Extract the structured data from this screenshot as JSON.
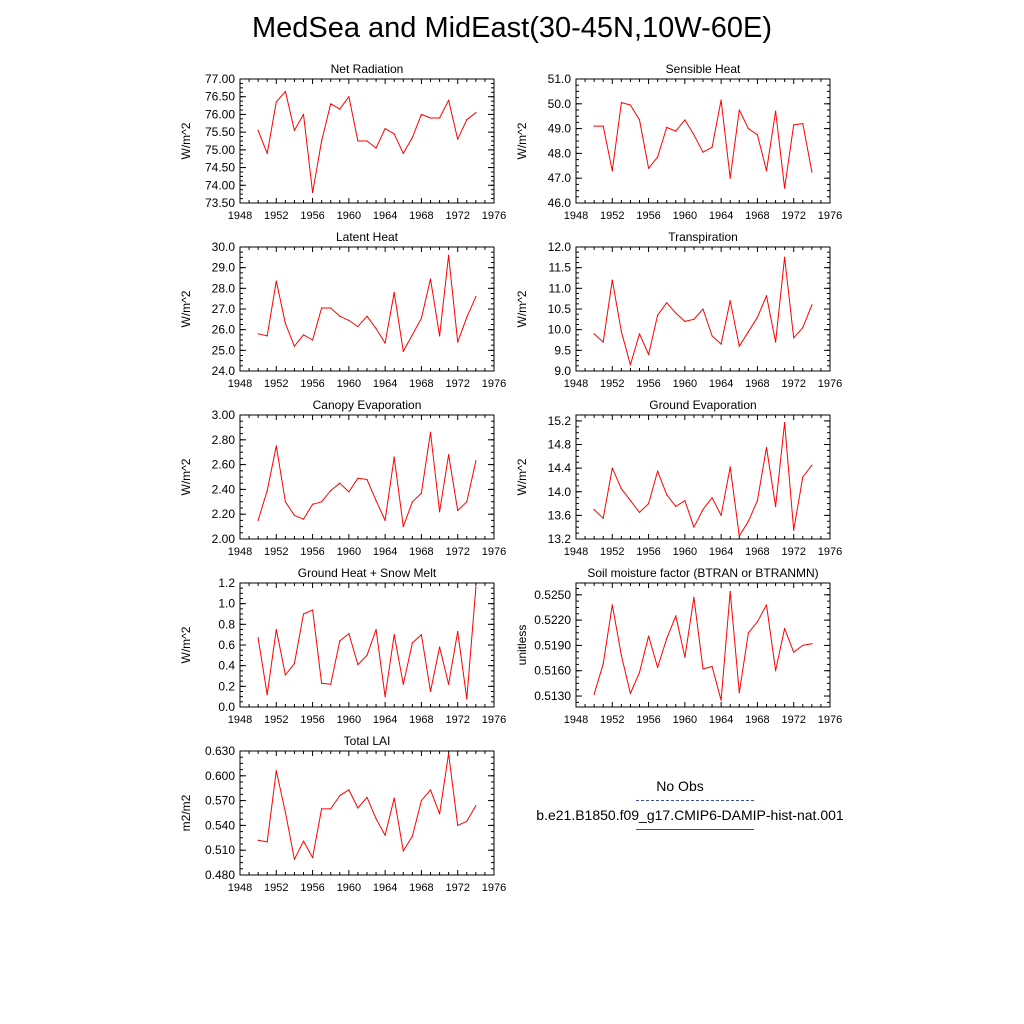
{
  "title": "MedSea and MidEast(30-45N,10W-60E)",
  "series_color": "#ff0000",
  "obs_color": "#3a4fa0",
  "legend": {
    "obs_label": "No Obs",
    "model_label": "b.e21.B1850.f09_g17.CMIP6-DAMIP-hist-nat.001"
  },
  "chart_data": [
    {
      "type": "line",
      "title": "Net Radiation",
      "ylabel": "W/m^2",
      "xlim": [
        1948,
        1976
      ],
      "xticks": [
        "1948",
        "1952",
        "1956",
        "1960",
        "1964",
        "1968",
        "1972",
        "1976"
      ],
      "ylim": [
        73.5,
        77.0
      ],
      "yticks": [
        "73.50",
        "74.00",
        "74.50",
        "75.00",
        "75.50",
        "76.00",
        "76.50",
        "77.00"
      ],
      "x": [
        1950,
        1951,
        1952,
        1953,
        1954,
        1955,
        1956,
        1957,
        1958,
        1959,
        1960,
        1961,
        1962,
        1963,
        1964,
        1965,
        1966,
        1967,
        1968,
        1969,
        1970,
        1971,
        1972,
        1973,
        1974
      ],
      "series": [
        {
          "values": [
            75.55,
            74.9,
            76.35,
            76.65,
            75.55,
            76.0,
            73.8,
            75.25,
            76.3,
            76.15,
            76.5,
            75.25,
            75.25,
            75.05,
            75.6,
            75.45,
            74.9,
            75.35,
            76.0,
            75.9,
            75.9,
            76.4,
            75.3,
            75.85,
            76.05
          ]
        }
      ]
    },
    {
      "type": "line",
      "title": "Sensible Heat",
      "ylabel": "W/m^2",
      "xlim": [
        1948,
        1976
      ],
      "xticks": [
        "1948",
        "1952",
        "1956",
        "1960",
        "1964",
        "1968",
        "1972",
        "1976"
      ],
      "ylim": [
        46.0,
        51.0
      ],
      "yticks": [
        "46.0",
        "47.0",
        "48.0",
        "49.0",
        "50.0",
        "51.0"
      ],
      "x": [
        1950,
        1951,
        1952,
        1953,
        1954,
        1955,
        1956,
        1957,
        1958,
        1959,
        1960,
        1961,
        1962,
        1963,
        1964,
        1965,
        1966,
        1967,
        1968,
        1969,
        1970,
        1971,
        1972,
        1973,
        1974
      ],
      "series": [
        {
          "values": [
            49.1,
            49.1,
            47.3,
            50.05,
            49.95,
            49.35,
            47.4,
            47.85,
            49.05,
            48.9,
            49.35,
            48.75,
            48.05,
            48.25,
            50.15,
            47.0,
            49.75,
            49.0,
            48.75,
            47.3,
            49.7,
            46.6,
            49.15,
            49.2,
            47.25
          ]
        }
      ]
    },
    {
      "type": "line",
      "title": "Latent Heat",
      "ylabel": "W/m^2",
      "xlim": [
        1948,
        1976
      ],
      "xticks": [
        "1948",
        "1952",
        "1956",
        "1960",
        "1964",
        "1968",
        "1972",
        "1976"
      ],
      "ylim": [
        24.0,
        30.0
      ],
      "yticks": [
        "24.0",
        "25.0",
        "26.0",
        "27.0",
        "28.0",
        "29.0",
        "30.0"
      ],
      "x": [
        1950,
        1951,
        1952,
        1953,
        1954,
        1955,
        1956,
        1957,
        1958,
        1959,
        1960,
        1961,
        1962,
        1963,
        1964,
        1965,
        1966,
        1967,
        1968,
        1969,
        1970,
        1971,
        1972,
        1973,
        1974
      ],
      "series": [
        {
          "values": [
            25.8,
            25.7,
            28.35,
            26.3,
            25.2,
            25.75,
            25.5,
            27.05,
            27.05,
            26.65,
            26.45,
            26.15,
            26.65,
            26.05,
            25.35,
            27.8,
            24.95,
            25.75,
            26.55,
            28.45,
            25.7,
            29.6,
            25.4,
            26.6,
            27.6
          ]
        }
      ]
    },
    {
      "type": "line",
      "title": "Transpiration",
      "ylabel": "W/m^2",
      "xlim": [
        1948,
        1976
      ],
      "xticks": [
        "1948",
        "1952",
        "1956",
        "1960",
        "1964",
        "1968",
        "1972",
        "1976"
      ],
      "ylim": [
        9.0,
        12.0
      ],
      "yticks": [
        "9.0",
        "9.5",
        "10.0",
        "10.5",
        "11.0",
        "11.5",
        "12.0"
      ],
      "x": [
        1950,
        1951,
        1952,
        1953,
        1954,
        1955,
        1956,
        1957,
        1958,
        1959,
        1960,
        1961,
        1962,
        1963,
        1964,
        1965,
        1966,
        1967,
        1968,
        1969,
        1970,
        1971,
        1972,
        1973,
        1974
      ],
      "series": [
        {
          "values": [
            9.9,
            9.7,
            11.2,
            9.95,
            9.15,
            9.9,
            9.4,
            10.35,
            10.65,
            10.4,
            10.2,
            10.25,
            10.5,
            9.85,
            9.65,
            10.7,
            9.6,
            9.95,
            10.3,
            10.82,
            9.7,
            11.75,
            9.8,
            10.05,
            10.6
          ]
        }
      ]
    },
    {
      "type": "line",
      "title": "Canopy Evaporation",
      "ylabel": "W/m^2",
      "xlim": [
        1948,
        1976
      ],
      "xticks": [
        "1948",
        "1952",
        "1956",
        "1960",
        "1964",
        "1968",
        "1972",
        "1976"
      ],
      "ylim": [
        2.0,
        3.0
      ],
      "yticks": [
        "2.00",
        "2.20",
        "2.40",
        "2.60",
        "2.80",
        "3.00"
      ],
      "x": [
        1950,
        1951,
        1952,
        1953,
        1954,
        1955,
        1956,
        1957,
        1958,
        1959,
        1960,
        1961,
        1962,
        1963,
        1964,
        1965,
        1966,
        1967,
        1968,
        1969,
        1970,
        1971,
        1972,
        1973,
        1974
      ],
      "series": [
        {
          "values": [
            2.15,
            2.39,
            2.75,
            2.3,
            2.19,
            2.16,
            2.28,
            2.3,
            2.39,
            2.45,
            2.38,
            2.49,
            2.48,
            2.31,
            2.15,
            2.66,
            2.1,
            2.3,
            2.37,
            2.86,
            2.22,
            2.68,
            2.23,
            2.3,
            2.63
          ]
        }
      ]
    },
    {
      "type": "line",
      "title": "Ground Evaporation",
      "ylabel": "W/m^2",
      "xlim": [
        1948,
        1976
      ],
      "xticks": [
        "1948",
        "1952",
        "1956",
        "1960",
        "1964",
        "1968",
        "1972",
        "1976"
      ],
      "ylim": [
        13.2,
        15.3
      ],
      "yticks": [
        "13.2",
        "13.6",
        "14.0",
        "14.4",
        "14.8",
        "15.2"
      ],
      "x": [
        1950,
        1951,
        1952,
        1953,
        1954,
        1955,
        1956,
        1957,
        1958,
        1959,
        1960,
        1961,
        1962,
        1963,
        1964,
        1965,
        1966,
        1967,
        1968,
        1969,
        1970,
        1971,
        1972,
        1973,
        1974
      ],
      "series": [
        {
          "values": [
            13.7,
            13.55,
            14.4,
            14.05,
            13.85,
            13.65,
            13.8,
            14.35,
            13.95,
            13.75,
            13.85,
            13.4,
            13.7,
            13.9,
            13.6,
            14.42,
            13.25,
            13.5,
            13.85,
            14.75,
            13.75,
            15.17,
            13.35,
            14.25,
            14.45
          ]
        }
      ]
    },
    {
      "type": "line",
      "title": "Ground Heat + Snow Melt",
      "ylabel": "W/m^2",
      "xlim": [
        1948,
        1976
      ],
      "xticks": [
        "1948",
        "1952",
        "1956",
        "1960",
        "1964",
        "1968",
        "1972",
        "1976"
      ],
      "ylim": [
        0.0,
        1.2
      ],
      "yticks": [
        "0.0",
        "0.2",
        "0.4",
        "0.6",
        "0.8",
        "1.0",
        "1.2"
      ],
      "x": [
        1950,
        1951,
        1952,
        1953,
        1954,
        1955,
        1956,
        1957,
        1958,
        1959,
        1960,
        1961,
        1962,
        1963,
        1964,
        1965,
        1966,
        1967,
        1968,
        1969,
        1970,
        1971,
        1972,
        1973,
        1974
      ],
      "series": [
        {
          "values": [
            0.67,
            0.12,
            0.75,
            0.31,
            0.42,
            0.9,
            0.94,
            0.23,
            0.22,
            0.64,
            0.71,
            0.41,
            0.5,
            0.75,
            0.1,
            0.7,
            0.22,
            0.62,
            0.7,
            0.15,
            0.58,
            0.22,
            0.73,
            0.08,
            1.16
          ]
        }
      ]
    },
    {
      "type": "line",
      "title": "Soil moisture factor (BTRAN or BTRANMN)",
      "ylabel": "unitless",
      "xlim": [
        1948,
        1976
      ],
      "xticks": [
        "1948",
        "1952",
        "1956",
        "1960",
        "1964",
        "1968",
        "1972",
        "1976"
      ],
      "ylim": [
        0.5117,
        0.5264
      ],
      "yticks": [
        "0.5130",
        "0.5160",
        "0.5190",
        "0.5220",
        "0.5250"
      ],
      "x": [
        1950,
        1951,
        1952,
        1953,
        1954,
        1955,
        1956,
        1957,
        1958,
        1959,
        1960,
        1961,
        1962,
        1963,
        1964,
        1965,
        1966,
        1967,
        1968,
        1969,
        1970,
        1971,
        1972,
        1973,
        1974
      ],
      "series": [
        {
          "values": [
            0.5132,
            0.5168,
            0.5238,
            0.5178,
            0.5133,
            0.5158,
            0.5201,
            0.5164,
            0.5198,
            0.5225,
            0.5176,
            0.5247,
            0.5162,
            0.5165,
            0.5125,
            0.5254,
            0.5134,
            0.5205,
            0.5218,
            0.5238,
            0.516,
            0.521,
            0.5182,
            0.519,
            0.5192
          ]
        }
      ]
    },
    {
      "type": "line",
      "title": "Total LAI",
      "ylabel": "m2/m2",
      "xlim": [
        1948,
        1976
      ],
      "xticks": [
        "1948",
        "1952",
        "1956",
        "1960",
        "1964",
        "1968",
        "1972",
        "1976"
      ],
      "ylim": [
        0.48,
        0.63
      ],
      "yticks": [
        "0.480",
        "0.510",
        "0.540",
        "0.570",
        "0.600",
        "0.630"
      ],
      "x": [
        1950,
        1951,
        1952,
        1953,
        1954,
        1955,
        1956,
        1957,
        1958,
        1959,
        1960,
        1961,
        1962,
        1963,
        1964,
        1965,
        1966,
        1967,
        1968,
        1969,
        1970,
        1971,
        1972,
        1973,
        1974
      ],
      "series": [
        {
          "values": [
            0.522,
            0.52,
            0.606,
            0.556,
            0.499,
            0.521,
            0.501,
            0.56,
            0.56,
            0.576,
            0.583,
            0.561,
            0.574,
            0.548,
            0.528,
            0.573,
            0.509,
            0.527,
            0.57,
            0.583,
            0.554,
            0.627,
            0.54,
            0.545,
            0.564
          ]
        }
      ]
    }
  ]
}
